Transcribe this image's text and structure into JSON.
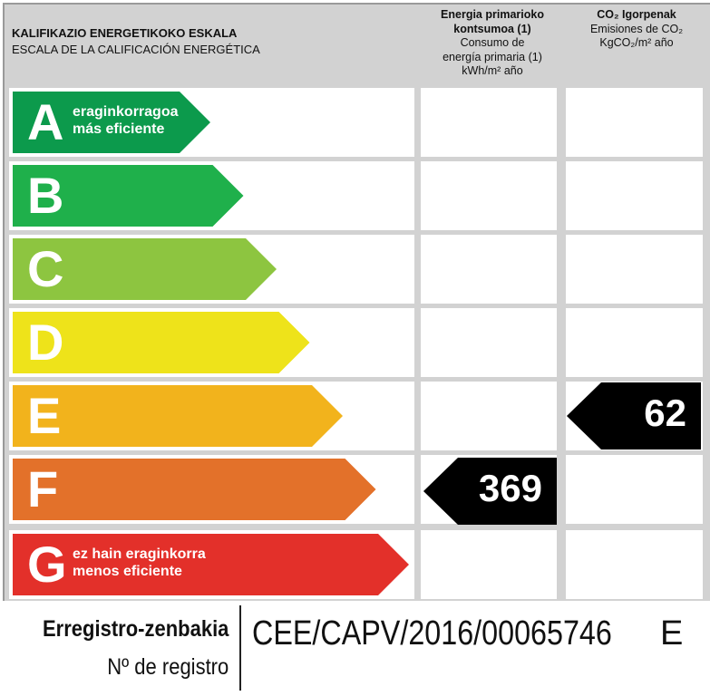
{
  "header": {
    "title_eu": "KALIFIKAZIO ENERGETIKOKO ESKALA",
    "title_es": "ESCALA DE LA CALIFICACIÓN ENERGÉTICA",
    "col_energy": {
      "eu1": "Energia primarioko",
      "eu2": "kontsumoa (1)",
      "es1": "Consumo de",
      "es2": "energía primaria (1)",
      "unit": "kWh/m² año"
    },
    "col_co2": {
      "eu": "CO₂ Igorpenak",
      "es": "Emisiones de CO₂",
      "unit": "KgCO₂/m² año"
    }
  },
  "scale": [
    {
      "letter": "A",
      "color": "#0c9a4c",
      "label1": "eraginkorragoa",
      "label2": "más eficiente"
    },
    {
      "letter": "B",
      "color": "#1fb04b",
      "label1": "",
      "label2": ""
    },
    {
      "letter": "C",
      "color": "#8dc540",
      "label1": "",
      "label2": ""
    },
    {
      "letter": "D",
      "color": "#eee31a",
      "label1": "",
      "label2": ""
    },
    {
      "letter": "E",
      "color": "#f2b31c",
      "label1": "",
      "label2": ""
    },
    {
      "letter": "F",
      "color": "#e3712a",
      "label1": "",
      "label2": ""
    },
    {
      "letter": "G",
      "color": "#e3302a",
      "label1": "ez hain eraginkorra",
      "label2": "menos eficiente"
    }
  ],
  "ratings": {
    "energy": {
      "value": "369",
      "class": "F"
    },
    "co2": {
      "value": "62",
      "class": "E"
    }
  },
  "footer": {
    "label_eu": "Erregistro-zenbakia",
    "label_es": "Nº de registro",
    "code": "CEE/CAPV/2016/00065746",
    "class": "E"
  }
}
